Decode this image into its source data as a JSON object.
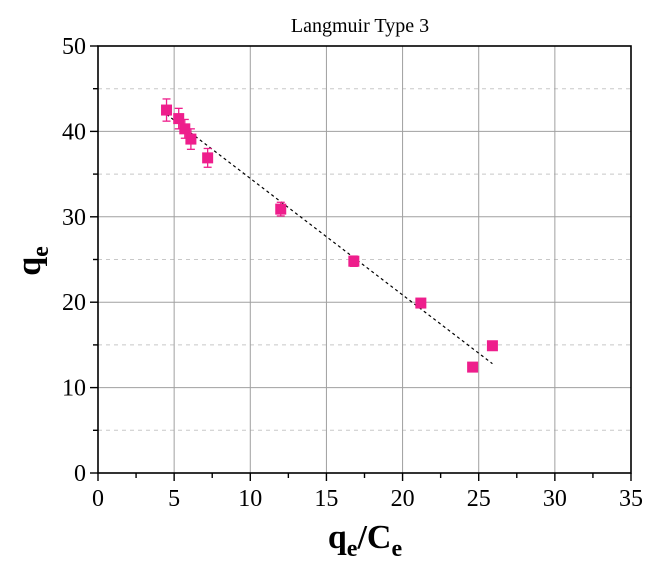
{
  "chart_data": {
    "type": "scatter",
    "title": "Langmuir Type 3",
    "xlabel": {
      "main": "q",
      "sub1": "e",
      "sep": "/C",
      "sub2": "e"
    },
    "ylabel": {
      "main": "q",
      "sub": "e"
    },
    "xlim": [
      0,
      35
    ],
    "ylim": [
      0,
      50
    ],
    "xticks": [
      0,
      5,
      10,
      15,
      20,
      25,
      30,
      35
    ],
    "yticks": [
      0,
      10,
      20,
      30,
      40,
      50
    ],
    "grid": true,
    "marker_color": "#ee1e8c",
    "series": [
      {
        "x": [
          4.5,
          5.3,
          5.7,
          6.1,
          7.2,
          12.0,
          16.8,
          21.2,
          24.6,
          25.9
        ],
        "y": [
          42.5,
          41.5,
          40.3,
          39.1,
          36.9,
          30.9,
          24.8,
          19.9,
          12.4,
          14.9
        ],
        "error": [
          1.3,
          1.2,
          1.1,
          1.2,
          1.1,
          0.8,
          0.6,
          0.4,
          0.3,
          0.3
        ]
      }
    ],
    "fit_line": {
      "x": [
        4.5,
        25.9
      ],
      "y": [
        42.0,
        12.8
      ]
    }
  }
}
